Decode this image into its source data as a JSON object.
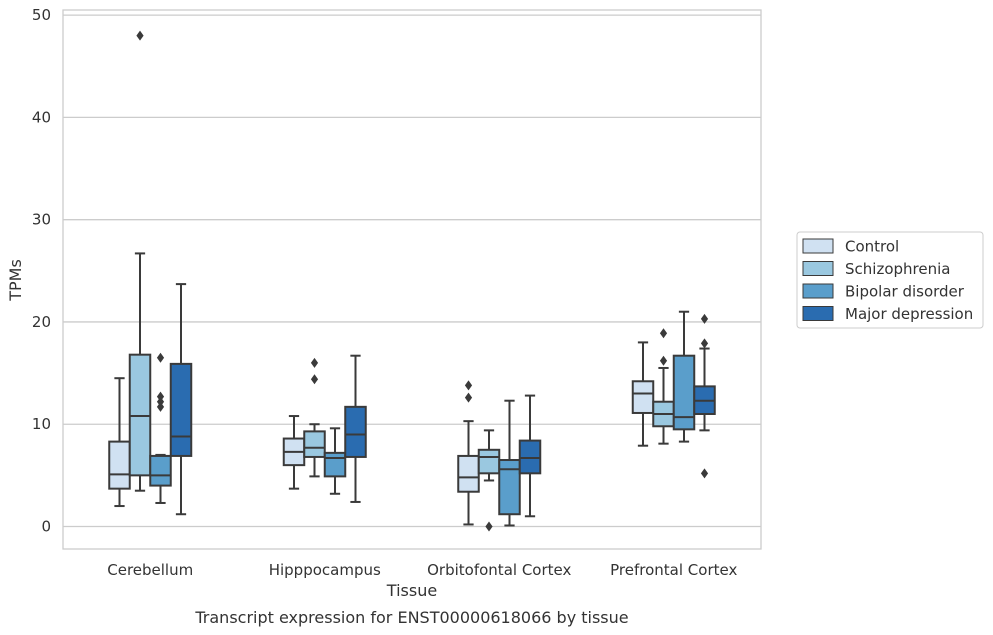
{
  "chart_data": {
    "type": "box",
    "caption": "Transcript expression for ENST00000618066 by tissue",
    "xlabel": "Tissue",
    "ylabel": "TPMs",
    "ylim": [
      -2.2,
      50.5
    ],
    "yticks": [
      0,
      10,
      20,
      30,
      40,
      50
    ],
    "grid": "horizontal",
    "legend_position": "right",
    "categories": [
      "Cerebellum",
      "Hipppocampus",
      "Orbitofontal Cortex",
      "Prefrontal Cortex"
    ],
    "series": [
      {
        "name": "Control",
        "color": "#d0e1f2",
        "boxes": [
          {
            "whisker_low": 2.0,
            "q1": 3.7,
            "median": 5.1,
            "q3": 8.3,
            "whisker_high": 14.5,
            "outliers": []
          },
          {
            "whisker_low": 3.7,
            "q1": 6.0,
            "median": 7.3,
            "q3": 8.6,
            "whisker_high": 10.8,
            "outliers": []
          },
          {
            "whisker_low": 0.2,
            "q1": 3.4,
            "median": 4.8,
            "q3": 6.9,
            "whisker_high": 10.3,
            "outliers": [
              12.6,
              13.8
            ]
          },
          {
            "whisker_low": 7.9,
            "q1": 11.1,
            "median": 13.0,
            "q3": 14.2,
            "whisker_high": 18.0,
            "outliers": []
          }
        ]
      },
      {
        "name": "Schizophrenia",
        "color": "#9ac8e0",
        "boxes": [
          {
            "whisker_low": 3.5,
            "q1": 5.0,
            "median": 10.8,
            "q3": 16.8,
            "whisker_high": 26.7,
            "outliers": [
              48.0
            ]
          },
          {
            "whisker_low": 4.9,
            "q1": 6.8,
            "median": 7.7,
            "q3": 9.3,
            "whisker_high": 10.0,
            "outliers": [
              14.4,
              16.0
            ]
          },
          {
            "whisker_low": 4.5,
            "q1": 5.2,
            "median": 6.8,
            "q3": 7.5,
            "whisker_high": 9.4,
            "outliers": [
              0.0
            ]
          },
          {
            "whisker_low": 8.1,
            "q1": 9.8,
            "median": 11.0,
            "q3": 12.2,
            "whisker_high": 15.5,
            "outliers": [
              16.2,
              18.9
            ]
          }
        ]
      },
      {
        "name": "Bipolar disorder",
        "color": "#5a9ecb",
        "boxes": [
          {
            "whisker_low": 2.3,
            "q1": 4.0,
            "median": 5.0,
            "q3": 6.9,
            "whisker_high": 7.0,
            "outliers": [
              11.7,
              12.2,
              12.7,
              16.5
            ]
          },
          {
            "whisker_low": 3.2,
            "q1": 4.9,
            "median": 6.7,
            "q3": 7.2,
            "whisker_high": 9.6,
            "outliers": []
          },
          {
            "whisker_low": 0.1,
            "q1": 1.2,
            "median": 5.6,
            "q3": 6.5,
            "whisker_high": 12.3,
            "outliers": []
          },
          {
            "whisker_low": 8.3,
            "q1": 9.5,
            "median": 10.7,
            "q3": 16.7,
            "whisker_high": 21.0,
            "outliers": []
          }
        ]
      },
      {
        "name": "Major depression",
        "color": "#2a6cb0",
        "boxes": [
          {
            "whisker_low": 1.2,
            "q1": 6.9,
            "median": 8.8,
            "q3": 15.9,
            "whisker_high": 23.7,
            "outliers": []
          },
          {
            "whisker_low": 2.4,
            "q1": 6.8,
            "median": 9.0,
            "q3": 11.7,
            "whisker_high": 16.7,
            "outliers": []
          },
          {
            "whisker_low": 1.0,
            "q1": 5.2,
            "median": 6.7,
            "q3": 8.4,
            "whisker_high": 12.8,
            "outliers": []
          },
          {
            "whisker_low": 9.4,
            "q1": 11.0,
            "median": 12.3,
            "q3": 13.7,
            "whisker_high": 17.4,
            "outliers": [
              5.2,
              17.9,
              20.3
            ]
          }
        ]
      }
    ]
  }
}
